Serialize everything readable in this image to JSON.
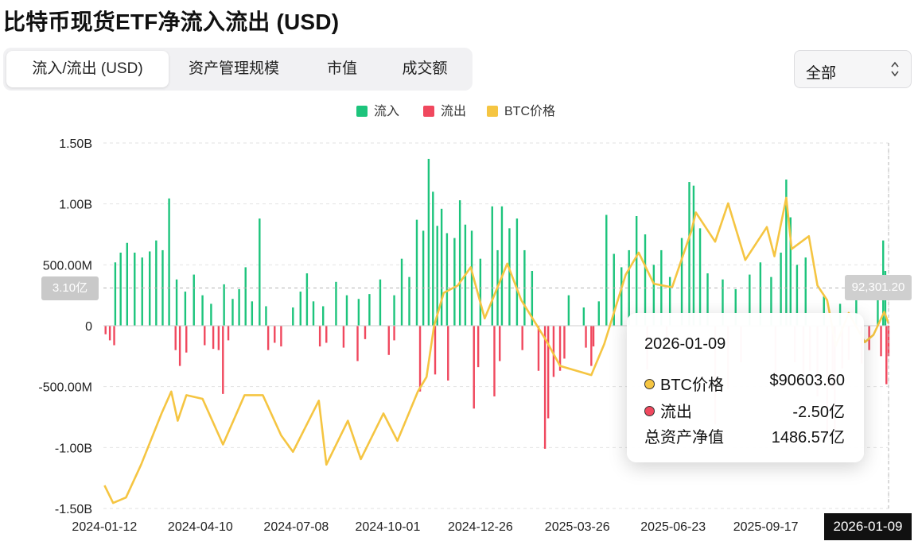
{
  "header": {
    "title": "比特币现货ETF净流入流出 (USD)"
  },
  "tabs": [
    {
      "label": "流入/流出 (USD)"
    },
    {
      "label": "资产管理规模"
    },
    {
      "label": "市值"
    },
    {
      "label": "成交额"
    }
  ],
  "filter": {
    "selected": "全部"
  },
  "colors": {
    "inflow": "#1dc47c",
    "outflow": "#f0485e",
    "btc": "#f5c542"
  },
  "legend": [
    {
      "label": "流入",
      "color": "#1dc47c"
    },
    {
      "label": "流出",
      "color": "#f0485e"
    },
    {
      "label": "BTC价格",
      "color": "#f5c542"
    }
  ],
  "crosshair": {
    "left_badge": "3.10亿",
    "right_badge": "92,301.20",
    "date_badge": "2026-01-09"
  },
  "tooltip": {
    "date": "2026-01-09",
    "rows": [
      {
        "label": "BTC价格",
        "value": "$90603.60"
      },
      {
        "label": "流出",
        "value": "-2.50亿"
      },
      {
        "label": "总资产净值",
        "value": "1486.57亿"
      }
    ]
  },
  "chart_data": {
    "type": "bar",
    "title": "比特币现货ETF净流入流出 (USD)",
    "y_ticks": [
      "1.50B",
      "1.00B",
      "500.00M",
      "0",
      "-500.00M",
      "-1.00B",
      "-1.50B"
    ],
    "ylim": [
      -1500,
      1500
    ],
    "y_unit": "M USD",
    "x_ticks": [
      "2024-01-12",
      "2024-04-10",
      "2024-07-08",
      "2024-10-01",
      "2024-12-26",
      "2025-03-26",
      "2025-06-23",
      "2025-09-17"
    ],
    "x_range": [
      "2024-01-11",
      "2026-01-09"
    ],
    "series": [
      {
        "name": "流入",
        "kind": "bar",
        "color": "#1dc47c",
        "points": [
          [
            "2024-01-22",
            520
          ],
          [
            "2024-01-27",
            600
          ],
          [
            "2024-02-02",
            680
          ],
          [
            "2024-02-09",
            600
          ],
          [
            "2024-02-16",
            560
          ],
          [
            "2024-02-23",
            610
          ],
          [
            "2024-02-29",
            700
          ],
          [
            "2024-03-06",
            620
          ],
          [
            "2024-03-12",
            1045
          ],
          [
            "2024-03-19",
            380
          ],
          [
            "2024-03-27",
            280
          ],
          [
            "2024-04-04",
            420
          ],
          [
            "2024-04-12",
            250
          ],
          [
            "2024-04-20",
            180
          ],
          [
            "2024-05-02",
            340
          ],
          [
            "2024-05-10",
            220
          ],
          [
            "2024-05-16",
            300
          ],
          [
            "2024-05-22",
            480
          ],
          [
            "2024-05-28",
            200
          ],
          [
            "2024-06-04",
            880
          ],
          [
            "2024-06-10",
            160
          ],
          [
            "2024-07-05",
            150
          ],
          [
            "2024-07-12",
            280
          ],
          [
            "2024-07-18",
            430
          ],
          [
            "2024-07-24",
            200
          ],
          [
            "2024-08-02",
            160
          ],
          [
            "2024-08-14",
            360
          ],
          [
            "2024-08-24",
            250
          ],
          [
            "2024-09-04",
            220
          ],
          [
            "2024-09-14",
            260
          ],
          [
            "2024-09-24",
            380
          ],
          [
            "2024-10-07",
            250
          ],
          [
            "2024-10-14",
            550
          ],
          [
            "2024-10-21",
            400
          ],
          [
            "2024-10-28",
            870
          ],
          [
            "2024-11-03",
            780
          ],
          [
            "2024-11-08",
            1370
          ],
          [
            "2024-11-12",
            1100
          ],
          [
            "2024-11-16",
            820
          ],
          [
            "2024-11-20",
            960
          ],
          [
            "2024-11-25",
            760
          ],
          [
            "2024-12-02",
            720
          ],
          [
            "2024-12-07",
            1030
          ],
          [
            "2024-12-12",
            830
          ],
          [
            "2024-12-18",
            780
          ],
          [
            "2024-12-26",
            550
          ],
          [
            "2025-01-06",
            980
          ],
          [
            "2025-01-11",
            620
          ],
          [
            "2025-01-15",
            980
          ],
          [
            "2025-01-22",
            800
          ],
          [
            "2025-01-29",
            880
          ],
          [
            "2025-02-05",
            620
          ],
          [
            "2025-02-12",
            450
          ],
          [
            "2025-03-18",
            250
          ],
          [
            "2025-04-01",
            150
          ],
          [
            "2025-04-15",
            200
          ],
          [
            "2025-04-22",
            910
          ],
          [
            "2025-04-29",
            590
          ],
          [
            "2025-05-06",
            480
          ],
          [
            "2025-05-13",
            620
          ],
          [
            "2025-05-20",
            900
          ],
          [
            "2025-05-28",
            750
          ],
          [
            "2025-06-05",
            500
          ],
          [
            "2025-06-12",
            620
          ],
          [
            "2025-06-20",
            400
          ],
          [
            "2025-07-01",
            720
          ],
          [
            "2025-07-08",
            1180
          ],
          [
            "2025-07-12",
            1150
          ],
          [
            "2025-07-18",
            800
          ],
          [
            "2025-07-25",
            430
          ],
          [
            "2025-08-08",
            380
          ],
          [
            "2025-08-20",
            300
          ],
          [
            "2025-09-02",
            420
          ],
          [
            "2025-09-12",
            520
          ],
          [
            "2025-09-22",
            400
          ],
          [
            "2025-10-01",
            600
          ],
          [
            "2025-10-06",
            1200
          ],
          [
            "2025-10-10",
            890
          ],
          [
            "2025-10-16",
            500
          ],
          [
            "2025-10-24",
            560
          ],
          [
            "2025-11-10",
            240
          ],
          [
            "2025-11-25",
            180
          ],
          [
            "2025-12-10",
            220
          ],
          [
            "2025-12-30",
            300
          ],
          [
            "2026-01-04",
            700
          ],
          [
            "2026-01-06",
            450
          ]
        ]
      },
      {
        "name": "流出",
        "kind": "bar",
        "color": "#f0485e",
        "points": [
          [
            "2024-01-13",
            -70
          ],
          [
            "2024-01-17",
            -120
          ],
          [
            "2024-01-21",
            -160
          ],
          [
            "2024-03-18",
            -200
          ],
          [
            "2024-03-22",
            -330
          ],
          [
            "2024-03-28",
            -220
          ],
          [
            "2024-04-14",
            -160
          ],
          [
            "2024-04-22",
            -190
          ],
          [
            "2024-04-27",
            -200
          ],
          [
            "2024-05-01",
            -560
          ],
          [
            "2024-05-06",
            -120
          ],
          [
            "2024-06-12",
            -200
          ],
          [
            "2024-06-18",
            -140
          ],
          [
            "2024-06-24",
            -170
          ],
          [
            "2024-07-30",
            -170
          ],
          [
            "2024-08-05",
            -140
          ],
          [
            "2024-08-21",
            -180
          ],
          [
            "2024-09-03",
            -290
          ],
          [
            "2024-09-10",
            -110
          ],
          [
            "2024-10-02",
            -240
          ],
          [
            "2024-10-07",
            -120
          ],
          [
            "2024-10-31",
            -540
          ],
          [
            "2024-11-14",
            -400
          ],
          [
            "2024-11-26",
            -450
          ],
          [
            "2024-12-20",
            -680
          ],
          [
            "2024-12-24",
            -340
          ],
          [
            "2025-01-08",
            -580
          ],
          [
            "2025-01-13",
            -290
          ],
          [
            "2025-02-03",
            -200
          ],
          [
            "2025-02-18",
            -370
          ],
          [
            "2025-02-24",
            -1010
          ],
          [
            "2025-02-27",
            -760
          ],
          [
            "2025-03-04",
            -420
          ],
          [
            "2025-03-10",
            -370
          ],
          [
            "2025-03-14",
            -270
          ],
          [
            "2025-04-03",
            -180
          ],
          [
            "2025-04-08",
            -330
          ],
          [
            "2025-04-10",
            -170
          ],
          [
            "2025-05-30",
            -360
          ],
          [
            "2025-06-17",
            -100
          ],
          [
            "2025-08-01",
            -810
          ],
          [
            "2025-08-13",
            -520
          ],
          [
            "2025-08-25",
            -300
          ],
          [
            "2025-09-26",
            -400
          ],
          [
            "2025-10-14",
            -300
          ],
          [
            "2025-10-22",
            -400
          ],
          [
            "2025-10-28",
            -370
          ],
          [
            "2025-11-04",
            -580
          ],
          [
            "2025-11-13",
            -880
          ],
          [
            "2025-11-18",
            -520
          ],
          [
            "2025-11-20",
            -900
          ],
          [
            "2025-11-27",
            -350
          ],
          [
            "2025-12-03",
            -280
          ],
          [
            "2025-12-15",
            -310
          ],
          [
            "2025-12-22",
            -200
          ],
          [
            "2026-01-02",
            -250
          ],
          [
            "2026-01-07",
            -480
          ],
          [
            "2026-01-09",
            -250
          ]
        ]
      },
      {
        "name": "BTC价格",
        "kind": "line",
        "color": "#f5c542",
        "unit": "USD",
        "points": [
          [
            "2024-01-12",
            46300
          ],
          [
            "2024-01-20",
            41500
          ],
          [
            "2024-02-01",
            43000
          ],
          [
            "2024-02-15",
            52000
          ],
          [
            "2024-03-05",
            66000
          ],
          [
            "2024-03-14",
            72000
          ],
          [
            "2024-03-20",
            64000
          ],
          [
            "2024-03-28",
            71000
          ],
          [
            "2024-04-12",
            70000
          ],
          [
            "2024-05-01",
            57500
          ],
          [
            "2024-05-21",
            71000
          ],
          [
            "2024-06-07",
            71000
          ],
          [
            "2024-06-24",
            60000
          ],
          [
            "2024-07-05",
            55500
          ],
          [
            "2024-07-29",
            69500
          ],
          [
            "2024-08-05",
            52000
          ],
          [
            "2024-08-25",
            64000
          ],
          [
            "2024-09-06",
            53500
          ],
          [
            "2024-09-27",
            66000
          ],
          [
            "2024-10-10",
            58500
          ],
          [
            "2024-10-29",
            72000
          ],
          [
            "2024-11-06",
            76000
          ],
          [
            "2024-11-13",
            90000
          ],
          [
            "2024-11-22",
            99000
          ],
          [
            "2024-12-05",
            101000
          ],
          [
            "2024-12-17",
            106000
          ],
          [
            "2024-12-30",
            92000
          ],
          [
            "2025-01-20",
            107000
          ],
          [
            "2025-02-02",
            97000
          ],
          [
            "2025-02-25",
            86000
          ],
          [
            "2025-03-10",
            79000
          ],
          [
            "2025-04-08",
            76500
          ],
          [
            "2025-04-20",
            85000
          ],
          [
            "2025-05-10",
            104000
          ],
          [
            "2025-05-22",
            110000
          ],
          [
            "2025-06-05",
            101500
          ],
          [
            "2025-06-22",
            100500
          ],
          [
            "2025-07-10",
            116000
          ],
          [
            "2025-07-14",
            121000
          ],
          [
            "2025-08-01",
            113000
          ],
          [
            "2025-08-13",
            123500
          ],
          [
            "2025-08-29",
            108000
          ],
          [
            "2025-09-18",
            117000
          ],
          [
            "2025-09-25",
            109000
          ],
          [
            "2025-10-06",
            125000
          ],
          [
            "2025-10-11",
            111000
          ],
          [
            "2025-10-27",
            114500
          ],
          [
            "2025-11-04",
            101000
          ],
          [
            "2025-11-13",
            97000
          ],
          [
            "2025-11-21",
            84500
          ],
          [
            "2025-12-03",
            93500
          ],
          [
            "2025-12-18",
            85500
          ],
          [
            "2025-12-26",
            87500
          ],
          [
            "2026-01-05",
            93800
          ],
          [
            "2026-01-09",
            90603.6
          ]
        ]
      }
    ],
    "y2lim": [
      40000,
      140000
    ],
    "legend_position": "top-center",
    "grid": "horizontal-dashed"
  }
}
